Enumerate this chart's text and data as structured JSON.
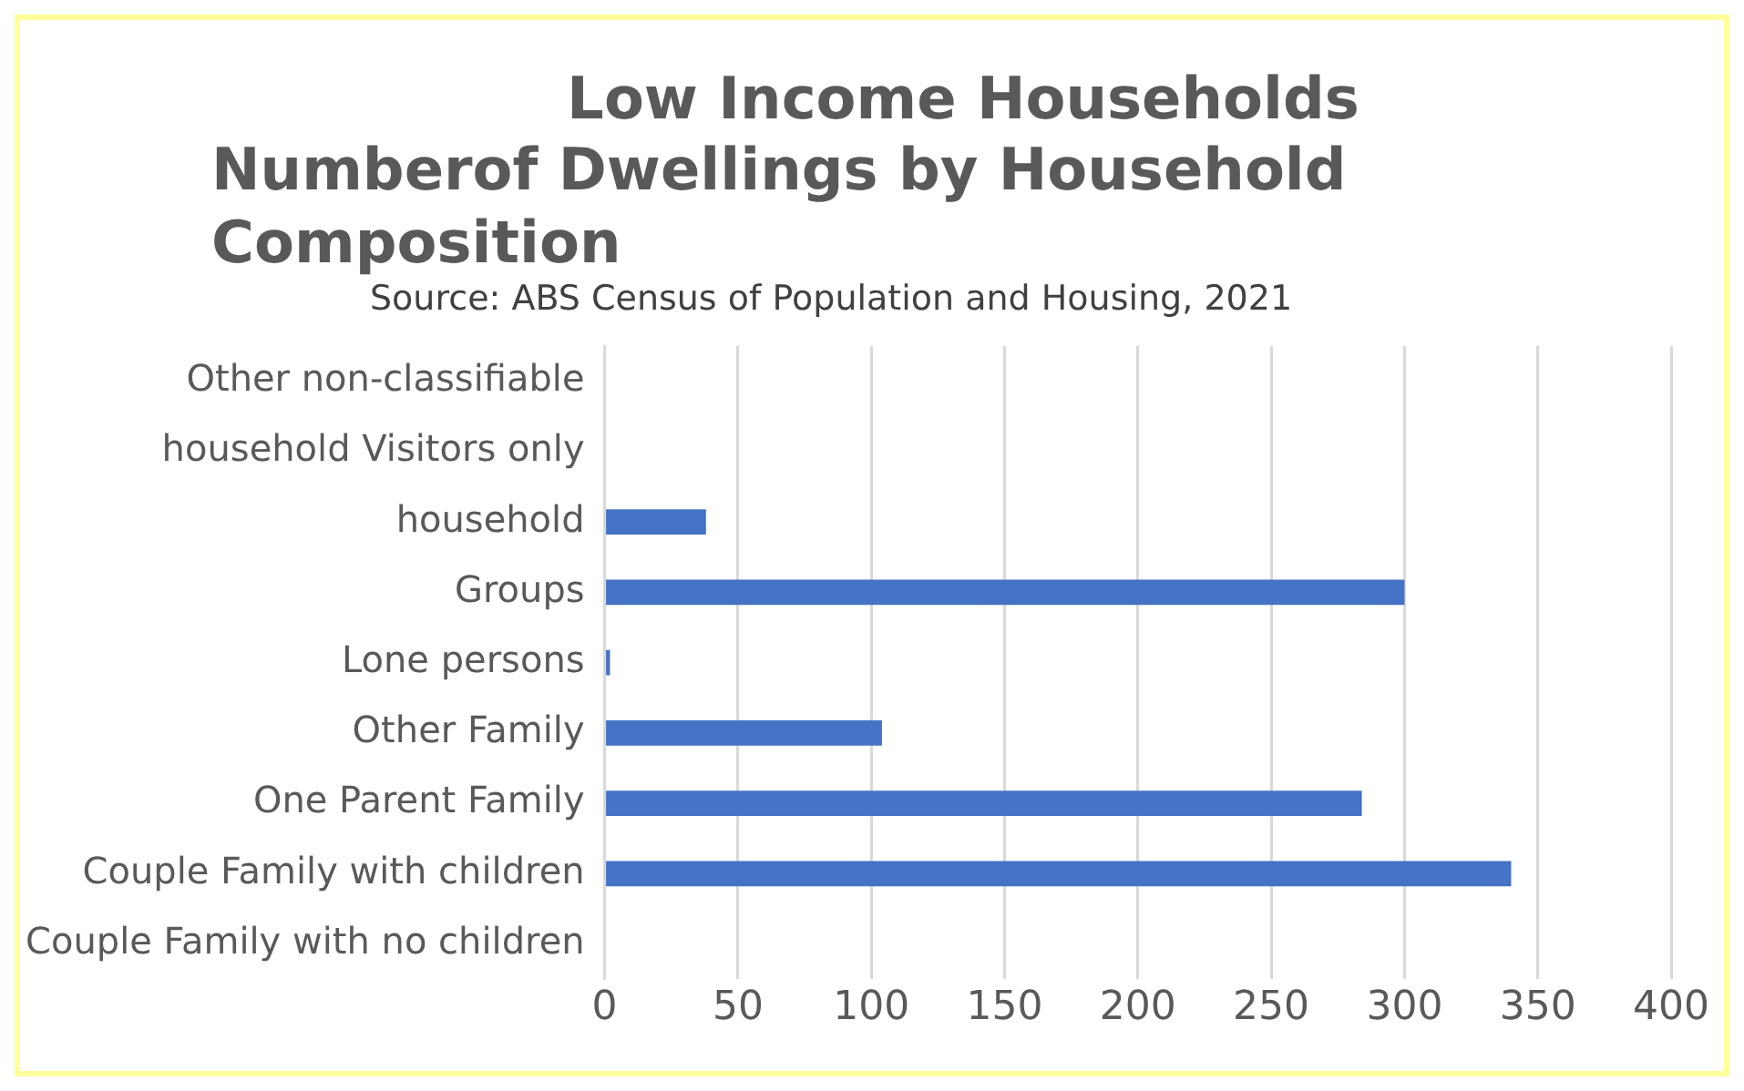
{
  "chart_data": {
    "type": "bar",
    "orientation": "horizontal",
    "title": "Low Income Households",
    "subtitle": "Numberof Dwellings by Household Composition",
    "annotations": [
      "Source: ABS Census of Population and Housing, 2021"
    ],
    "categories": [
      "Other non-classifiable",
      "household Visitors only",
      "household",
      "Groups",
      "Lone persons",
      "Other Family",
      "One Parent Family",
      "Couple Family with children",
      "Couple Family with no children"
    ],
    "values": [
      null,
      null,
      38,
      300,
      2,
      104,
      284,
      340,
      null
    ],
    "color": "#4472c4",
    "xlim": [
      0,
      400
    ],
    "xticks": [
      0,
      50,
      100,
      150,
      200,
      250,
      300,
      350,
      400
    ],
    "grid": "x",
    "legend": false
  }
}
